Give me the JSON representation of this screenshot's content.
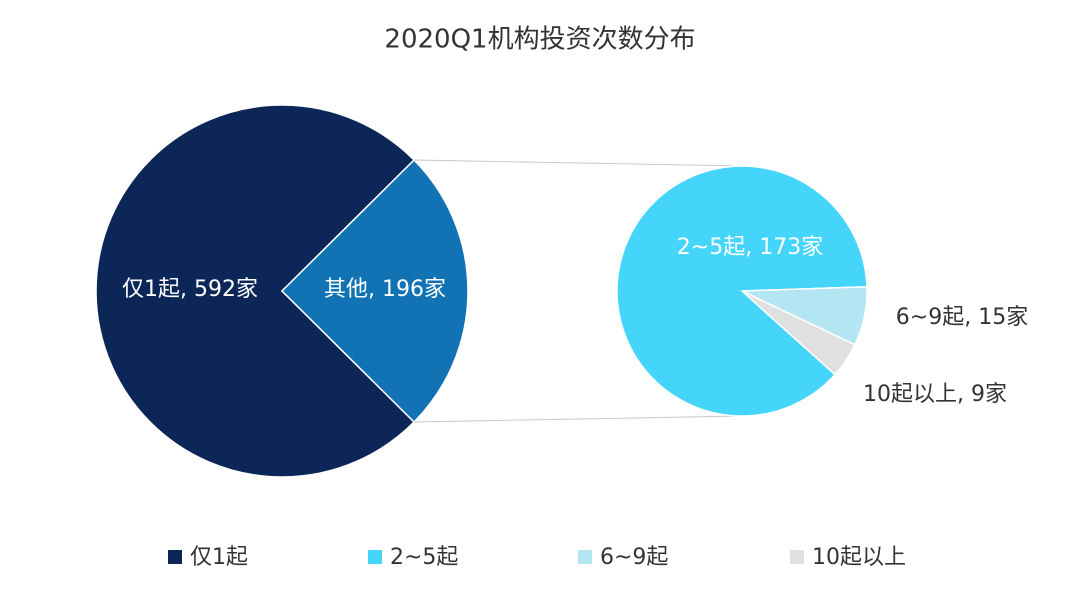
{
  "chart_data": {
    "type": "pie",
    "title": "2020Q1机构投资次数分布",
    "categories": [
      "仅1起",
      "其他"
    ],
    "values": [
      592,
      196
    ],
    "value_labels": [
      "仅1起, 592家",
      "其他, 196家"
    ],
    "colors": [
      "#0b2657",
      "#1173b4"
    ],
    "breakdown": {
      "categories": [
        "2~5起",
        "6~9起",
        "10起以上"
      ],
      "values": [
        173,
        15,
        9
      ],
      "value_labels": [
        "2~5起, 173家",
        "6~9起, 15家",
        "10起以上, 9家"
      ],
      "colors": [
        "#45d5fb",
        "#b3e5f3",
        "#e0e0e0"
      ]
    }
  }
}
